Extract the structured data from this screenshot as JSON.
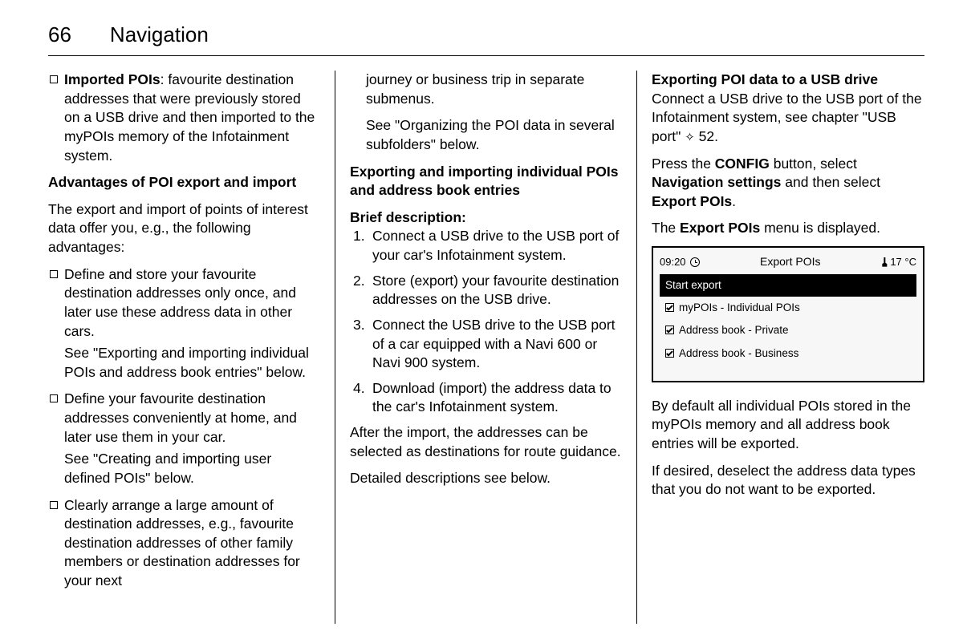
{
  "header": {
    "page_number": "66",
    "section": "Navigation"
  },
  "col1": {
    "bullet1_label": "Imported POIs",
    "bullet1_rest": ": favourite destination addresses that were previously stored on a USB drive and then imported to the myPOIs memory of the Infotainment system.",
    "advantages_heading": "Advantages of POI export and import",
    "advantages_intro": "The export and import of points of interest data offer you, e.g., the following advantages:",
    "adv1": "Define and store your favourite destination addresses only once, and later use these address data in other cars.",
    "adv1_see": "See \"Exporting and importing individual POIs and address book entries\" below.",
    "adv2": "Define your favourite destination addresses conveniently at home, and later use them in your car.",
    "adv2_see": "See \"Creating and importing user defined POIs\" below.",
    "adv3": "Clearly arrange a large amount of destination addresses, e.g., favourite destination addresses of other family members or destination addresses for your next"
  },
  "col2": {
    "cont": "journey or business trip in separate submenus.",
    "cont_see": "See \"Organizing the POI data in several subfolders\" below.",
    "h1": "Exporting and importing individual POIs and address book entries",
    "h2": "Brief description:",
    "step1": "Connect a USB drive to the USB port of your car's Infotainment system.",
    "step2": "Store (export) your favourite destination addresses on the USB drive.",
    "step3": "Connect the USB drive to the USB port of a car equipped with a Navi 600 or Navi 900 system.",
    "step4": "Download (import) the address data to the car's Infotainment system.",
    "after": "After the import, the addresses can be selected as destinations for route guidance.",
    "detail": "Detailed descriptions see below."
  },
  "col3": {
    "h1": "Exporting POI data to a USB drive",
    "p1a": "Connect a USB drive to the USB port of the Infotainment system, see chapter \"USB port\" ",
    "p1b": " 52.",
    "p2a": "Press the ",
    "p2_config": "CONFIG",
    "p2b": " button, select ",
    "p2_nav": "Navigation settings",
    "p2c": " and then select ",
    "p2_export": "Export POIs",
    "p2d": ".",
    "p3a": "The ",
    "p3_export": "Export POIs",
    "p3b": " menu is displayed.",
    "screen": {
      "time": "09:20",
      "title": "Export POIs",
      "temp": "17 °C",
      "row_selected": "Start export",
      "row1": "myPOIs - Individual POIs",
      "row2": "Address book - Private",
      "row3": "Address book - Business"
    },
    "p4": "By default all individual POIs stored in the myPOIs memory and all address book entries will be exported.",
    "p5": "If desired, deselect the address data types that you do not want to be exported."
  }
}
